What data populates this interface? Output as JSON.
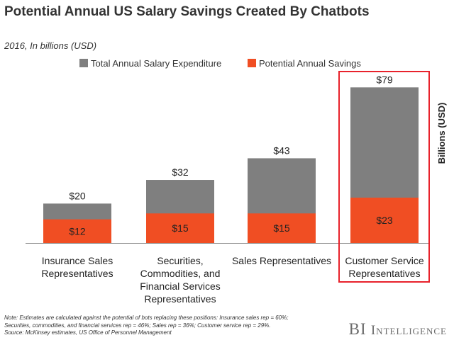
{
  "title": "Potential Annual US Salary Savings Created By Chatbots",
  "subtitle": "2016, In billions (USD)",
  "note_lines": [
    "Note: Estimates are calculated against the potential of bots replacing these positions: Insurance sales rep = 60%;",
    "Securities, commodities, and financial services rep = 46%; Sales rep = 36%; Customer service rep = 29%.",
    "Source: McKinsey estimates, US Office of Personnel Management"
  ],
  "brand": {
    "bi": "BI",
    "rest": "Intelligence"
  },
  "colors": {
    "total": "#7f7f7f",
    "savings": "#f04e23",
    "highlight": "#e8222b"
  },
  "chart_data": {
    "type": "bar",
    "stacked": "overlay",
    "categories": [
      [
        "Insurance Sales",
        "Representatives"
      ],
      [
        "Securities,",
        "Commodities, and",
        "Financial Services",
        "Representatives"
      ],
      [
        "Sales Representatives"
      ],
      [
        "Customer Service",
        "Representatives"
      ]
    ],
    "series": [
      {
        "name": "Total Annual Salary Expenditure",
        "values": [
          20,
          32,
          43,
          79
        ],
        "labels": [
          "$20",
          "$32",
          "$43",
          "$79"
        ]
      },
      {
        "name": "Potential Annual Savings",
        "values": [
          12,
          15,
          15,
          23
        ],
        "labels": [
          "$12",
          "$15",
          "$15",
          "$23"
        ]
      }
    ],
    "ylabel": "Billions (USD)",
    "ylim": [
      0,
      82
    ],
    "grid": false,
    "legend": "top",
    "highlighted_category": 3
  }
}
